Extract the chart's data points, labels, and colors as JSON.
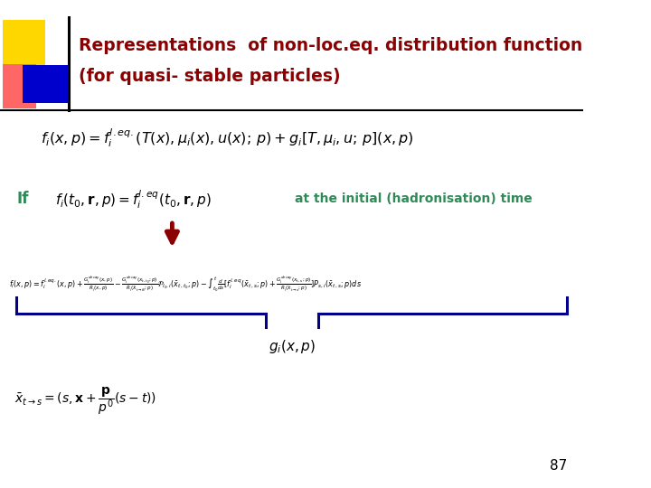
{
  "title_line1": "Representations  of non-loc.eq. distribution function",
  "title_line2": "(for quasi- stable particles)",
  "title_color": "#8B0000",
  "bg_color": "#ffffff",
  "slide_number": "87",
  "arrow_color": "#8B0000",
  "brace_color": "#00008B",
  "if_color": "#2E8B57",
  "if_text": "If",
  "hadron_text": "at the initial (hadronisation) time",
  "hadron_color": "#2E8B57",
  "header_colors": [
    "#FFD700",
    "#FF6666",
    "#0000CD"
  ],
  "header_line_color": "#000000"
}
